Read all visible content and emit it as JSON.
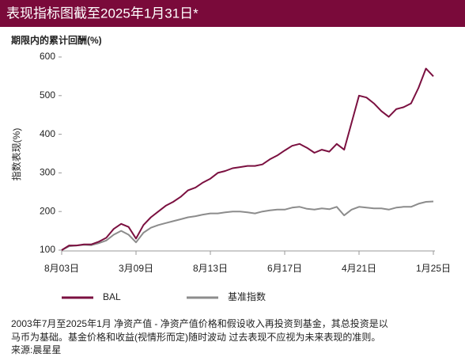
{
  "chart_data": {
    "type": "line",
    "title": "表现指标图截至2025年1月31日*",
    "subtitle": "期限内的累计回酬(%)",
    "ylabel": "指数表现(%)",
    "categories": [
      "8月03日",
      null,
      null,
      null,
      null,
      null,
      null,
      null,
      null,
      null,
      "3月09日",
      null,
      null,
      null,
      null,
      null,
      null,
      null,
      null,
      null,
      "8月13日",
      null,
      null,
      null,
      null,
      null,
      null,
      null,
      null,
      null,
      "6月17日",
      null,
      null,
      null,
      null,
      null,
      null,
      null,
      null,
      null,
      "4月21日",
      null,
      null,
      null,
      null,
      null,
      null,
      null,
      null,
      null,
      "1月25日"
    ],
    "series": [
      {
        "name": "BAL",
        "color": "#7b1040",
        "values": [
          100,
          112,
          112,
          115,
          115,
          122,
          132,
          155,
          168,
          160,
          130,
          165,
          185,
          200,
          215,
          225,
          238,
          255,
          262,
          275,
          285,
          300,
          305,
          312,
          315,
          318,
          318,
          322,
          335,
          345,
          358,
          370,
          375,
          365,
          352,
          360,
          355,
          375,
          360,
          430,
          500,
          495,
          480,
          460,
          445,
          465,
          470,
          480,
          520,
          570,
          550
        ]
      },
      {
        "name": "基准指数",
        "color": "#8c8c8c",
        "values": [
          100,
          110,
          112,
          114,
          113,
          118,
          125,
          140,
          150,
          140,
          120,
          145,
          158,
          165,
          170,
          175,
          180,
          185,
          188,
          192,
          195,
          195,
          198,
          200,
          200,
          198,
          195,
          200,
          203,
          205,
          205,
          210,
          212,
          207,
          205,
          208,
          206,
          212,
          190,
          205,
          212,
          210,
          208,
          208,
          205,
          210,
          212,
          212,
          220,
          225,
          226
        ]
      }
    ],
    "ylim": [
      100,
      600
    ],
    "yticks": [
      100,
      200,
      300,
      400,
      500,
      600
    ],
    "notes": [
      "2003年7月至2025年1月 净资产值 - 净资产值价格和假设收入再投资到基金，其总投资是以",
      "马币为基础。基金价格和收益(视情形而定)随时波动 过去表现不应视为未来表现的准则。"
    ],
    "source": "来源:晨星星"
  }
}
